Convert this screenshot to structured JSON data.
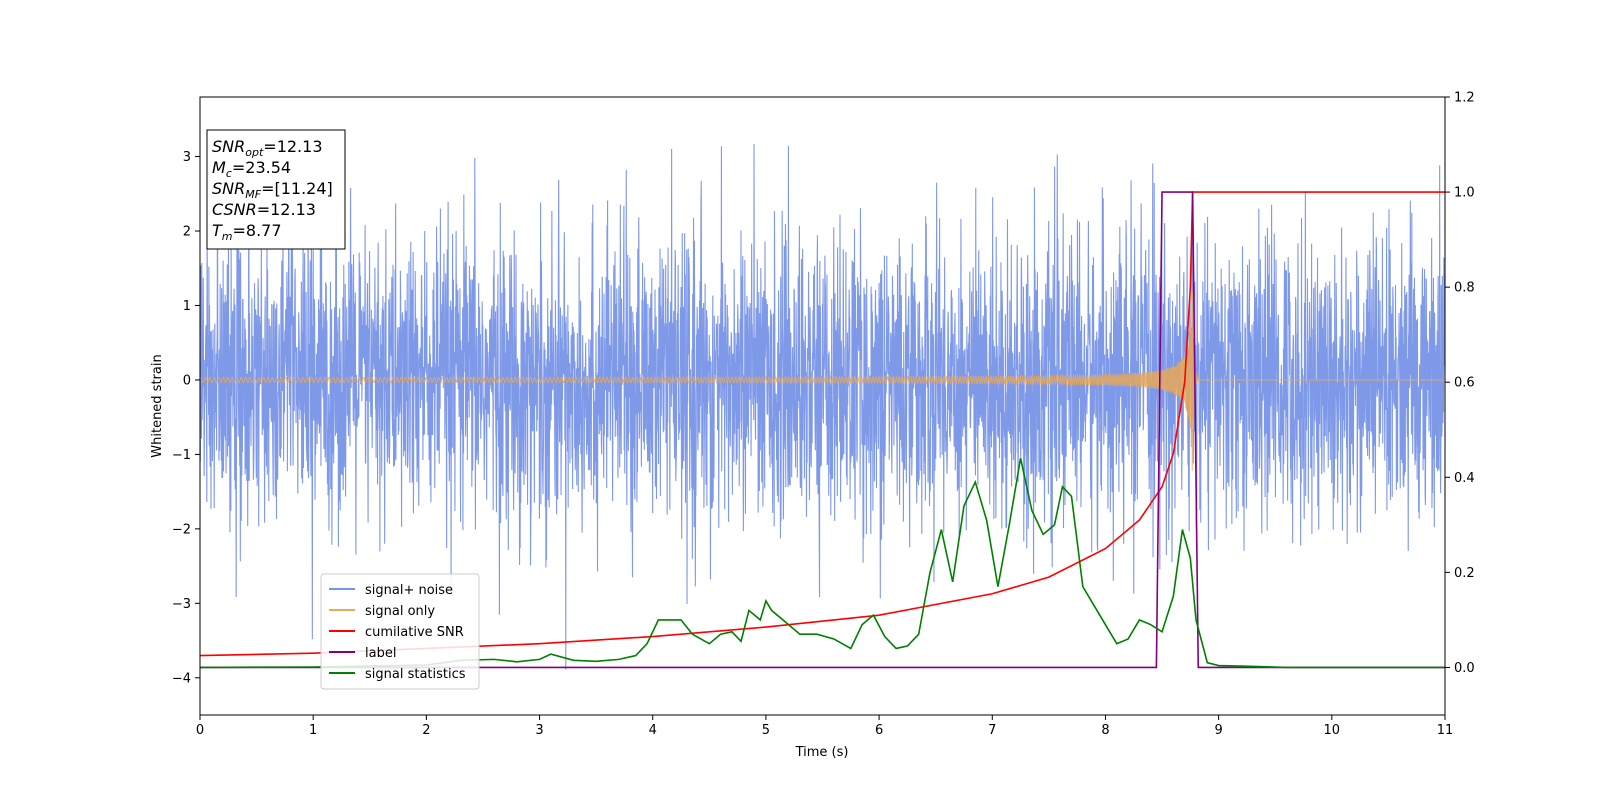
{
  "chart_data": {
    "type": "line",
    "xlabel": "Time (s)",
    "ylabel": "Whitened strain",
    "xlim": [
      0,
      11
    ],
    "ylim_left": [
      -4.5,
      3.8
    ],
    "ylim_right": [
      -0.1,
      1.2
    ],
    "x_ticks": [
      0,
      1,
      2,
      3,
      4,
      5,
      6,
      7,
      8,
      9,
      10,
      11
    ],
    "y_ticks_left": [
      -4,
      -3,
      -2,
      -1,
      0,
      1,
      2,
      3
    ],
    "y_ticks_right": [
      0.0,
      0.2,
      0.4,
      0.6,
      0.8,
      1.0,
      1.2
    ],
    "y_tick_labels_left": [
      "−4",
      "−3",
      "−2",
      "−1",
      "0",
      "1",
      "2",
      "3"
    ],
    "y_tick_labels_right": [
      "0.0",
      "0.2",
      "0.4",
      "0.6",
      "0.8",
      "1.0",
      "1.2"
    ],
    "legend_position": "lower-left",
    "annotation": {
      "lines": [
        {
          "name": "SNR",
          "sub": "opt",
          "value": "=12.13"
        },
        {
          "name": "M",
          "sub": "c",
          "value": "=23.54"
        },
        {
          "name": "SNR",
          "sub": "MF",
          "value": "=[11.24]"
        },
        {
          "name": "CSNR",
          "sub": "",
          "value": "=12.13"
        },
        {
          "name": "T",
          "sub": "m",
          "value": "=8.77"
        }
      ]
    },
    "series": [
      {
        "name": "signal+ noise",
        "axis": "left",
        "color": "#7893e8",
        "kind": "noise",
        "noise_range": [
          -4.15,
          3.4
        ],
        "typical_band": [
          -2.2,
          2.2
        ]
      },
      {
        "name": "signal only",
        "axis": "left",
        "color": "#e8a857",
        "kind": "chirp",
        "merger_time": 8.77,
        "peak_amplitude": 1.3
      },
      {
        "name": "cumilative SNR",
        "axis": "right",
        "color": "#ff0000",
        "points": [
          [
            0,
            0.025
          ],
          [
            1,
            0.03
          ],
          [
            2,
            0.04
          ],
          [
            3,
            0.05
          ],
          [
            4,
            0.065
          ],
          [
            5,
            0.085
          ],
          [
            6,
            0.11
          ],
          [
            7,
            0.155
          ],
          [
            7.5,
            0.19
          ],
          [
            8,
            0.25
          ],
          [
            8.3,
            0.31
          ],
          [
            8.5,
            0.38
          ],
          [
            8.6,
            0.45
          ],
          [
            8.7,
            0.6
          ],
          [
            8.75,
            0.8
          ],
          [
            8.77,
            1.0
          ],
          [
            11,
            1.0
          ]
        ]
      },
      {
        "name": "label",
        "axis": "right",
        "color": "#800080",
        "points": [
          [
            0,
            0.0
          ],
          [
            8.45,
            0.0
          ],
          [
            8.5,
            1.0
          ],
          [
            8.77,
            1.0
          ],
          [
            8.82,
            0.0
          ],
          [
            11,
            0.0
          ]
        ]
      },
      {
        "name": "signal statistics",
        "axis": "right",
        "color": "#008000",
        "points": [
          [
            0,
            0.0
          ],
          [
            1.0,
            0.001
          ],
          [
            2.0,
            0.005
          ],
          [
            2.3,
            0.015
          ],
          [
            2.6,
            0.017
          ],
          [
            2.8,
            0.012
          ],
          [
            3.0,
            0.017
          ],
          [
            3.1,
            0.028
          ],
          [
            3.3,
            0.015
          ],
          [
            3.5,
            0.013
          ],
          [
            3.7,
            0.017
          ],
          [
            3.85,
            0.025
          ],
          [
            3.95,
            0.05
          ],
          [
            4.05,
            0.1
          ],
          [
            4.15,
            0.1
          ],
          [
            4.25,
            0.1
          ],
          [
            4.35,
            0.07
          ],
          [
            4.5,
            0.05
          ],
          [
            4.6,
            0.07
          ],
          [
            4.7,
            0.075
          ],
          [
            4.78,
            0.055
          ],
          [
            4.85,
            0.12
          ],
          [
            4.95,
            0.1
          ],
          [
            5.0,
            0.14
          ],
          [
            5.05,
            0.12
          ],
          [
            5.15,
            0.1
          ],
          [
            5.3,
            0.07
          ],
          [
            5.45,
            0.07
          ],
          [
            5.6,
            0.06
          ],
          [
            5.75,
            0.04
          ],
          [
            5.85,
            0.09
          ],
          [
            5.95,
            0.11
          ],
          [
            6.05,
            0.065
          ],
          [
            6.15,
            0.04
          ],
          [
            6.25,
            0.045
          ],
          [
            6.35,
            0.07
          ],
          [
            6.45,
            0.2
          ],
          [
            6.55,
            0.29
          ],
          [
            6.65,
            0.18
          ],
          [
            6.75,
            0.34
          ],
          [
            6.85,
            0.39
          ],
          [
            6.95,
            0.31
          ],
          [
            7.05,
            0.17
          ],
          [
            7.15,
            0.3
          ],
          [
            7.25,
            0.44
          ],
          [
            7.35,
            0.33
          ],
          [
            7.45,
            0.28
          ],
          [
            7.55,
            0.3
          ],
          [
            7.62,
            0.38
          ],
          [
            7.7,
            0.36
          ],
          [
            7.8,
            0.17
          ],
          [
            7.9,
            0.13
          ],
          [
            8.0,
            0.09
          ],
          [
            8.1,
            0.05
          ],
          [
            8.2,
            0.06
          ],
          [
            8.3,
            0.1
          ],
          [
            8.4,
            0.09
          ],
          [
            8.5,
            0.075
          ],
          [
            8.6,
            0.15
          ],
          [
            8.68,
            0.29
          ],
          [
            8.75,
            0.23
          ],
          [
            8.8,
            0.1
          ],
          [
            8.9,
            0.01
          ],
          [
            9.0,
            0.004
          ],
          [
            9.2,
            0.003
          ],
          [
            9.6,
            0.0
          ],
          [
            11,
            0.0
          ]
        ]
      }
    ]
  }
}
